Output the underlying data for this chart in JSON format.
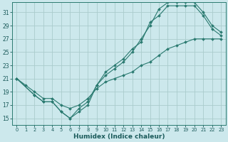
{
  "xlabel": "Humidex (Indice chaleur)",
  "bg_color": "#cce8ec",
  "grid_color": "#aacccc",
  "line_color": "#2a7a70",
  "xlim": [
    -0.5,
    23.5
  ],
  "ylim": [
    14.0,
    32.5
  ],
  "xticks": [
    0,
    1,
    2,
    3,
    4,
    5,
    6,
    7,
    8,
    9,
    10,
    11,
    12,
    13,
    14,
    15,
    16,
    17,
    18,
    19,
    20,
    21,
    22,
    23
  ],
  "yticks": [
    15,
    17,
    19,
    21,
    23,
    25,
    27,
    29,
    31
  ],
  "line1_x": [
    0,
    1,
    2,
    3,
    4,
    5,
    6,
    7,
    8,
    9,
    10,
    11,
    12,
    13,
    14,
    15,
    16,
    17,
    18,
    19,
    20,
    21,
    22,
    23
  ],
  "line1_y": [
    21,
    20,
    19,
    18,
    18,
    17,
    16.5,
    17,
    18,
    19.5,
    20.5,
    21,
    21.5,
    22,
    23,
    23.5,
    24.5,
    25.5,
    26,
    26.5,
    27,
    27,
    27,
    27
  ],
  "line2_x": [
    0,
    2,
    3,
    4,
    5,
    6,
    7,
    8,
    9,
    10,
    11,
    12,
    13,
    14,
    15,
    16,
    17,
    18,
    19,
    20,
    21,
    22,
    23
  ],
  "line2_y": [
    21,
    18.5,
    17.5,
    17.5,
    16,
    15,
    16,
    17,
    20,
    22,
    23,
    24,
    25.5,
    26.5,
    29.5,
    30.5,
    32,
    32,
    32,
    32,
    30.5,
    28.5,
    27.5
  ],
  "line3_x": [
    0,
    2,
    3,
    4,
    5,
    6,
    7,
    8,
    9,
    10,
    11,
    12,
    13,
    14,
    15,
    16,
    17,
    18,
    19,
    20,
    21,
    22,
    23
  ],
  "line3_y": [
    21,
    18.5,
    17.5,
    17.5,
    16,
    15,
    16.5,
    17.5,
    20,
    21.5,
    22.5,
    23.5,
    25,
    27,
    29,
    31.5,
    32.5,
    32.5,
    32.5,
    32.5,
    31,
    29,
    28
  ]
}
